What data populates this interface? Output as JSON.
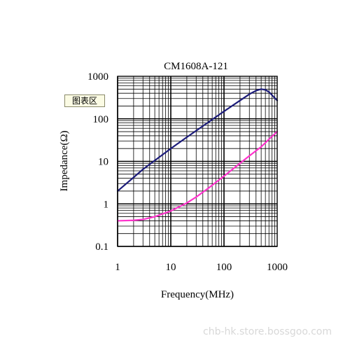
{
  "chart_data": {
    "type": "line",
    "title": "CM1608A-121",
    "xlabel": "Frequency(MHz)",
    "ylabel": "Impedance(Ω)",
    "xscale": "log",
    "yscale": "log",
    "xlim": [
      1,
      1000
    ],
    "ylim": [
      0.1,
      1000
    ],
    "grid": true,
    "xticks": [
      "1",
      "10",
      "100",
      "1000"
    ],
    "yticks": [
      "1000",
      "100",
      "10",
      "1",
      "0.1"
    ],
    "series": [
      {
        "color": "#1c1c7a",
        "x": [
          1,
          2,
          3,
          5,
          10,
          20,
          50,
          100,
          200,
          300,
          400,
          500,
          600,
          700,
          800,
          1000
        ],
        "y": [
          2,
          4.2,
          6.5,
          10.5,
          20,
          37,
          82,
          150,
          270,
          380,
          460,
          500,
          480,
          430,
          360,
          270
        ]
      },
      {
        "color": "#ff33cc",
        "x": [
          1,
          2,
          3,
          5,
          10,
          20,
          30,
          50,
          100,
          200,
          300,
          500,
          700,
          1000
        ],
        "y": [
          0.4,
          0.41,
          0.43,
          0.5,
          0.68,
          1.05,
          1.45,
          2.3,
          4.5,
          9,
          13.5,
          22,
          33,
          50
        ]
      }
    ]
  },
  "ui": {
    "chip_label": "图表区",
    "watermark": "chb-hk.store.bossgoo.com"
  }
}
